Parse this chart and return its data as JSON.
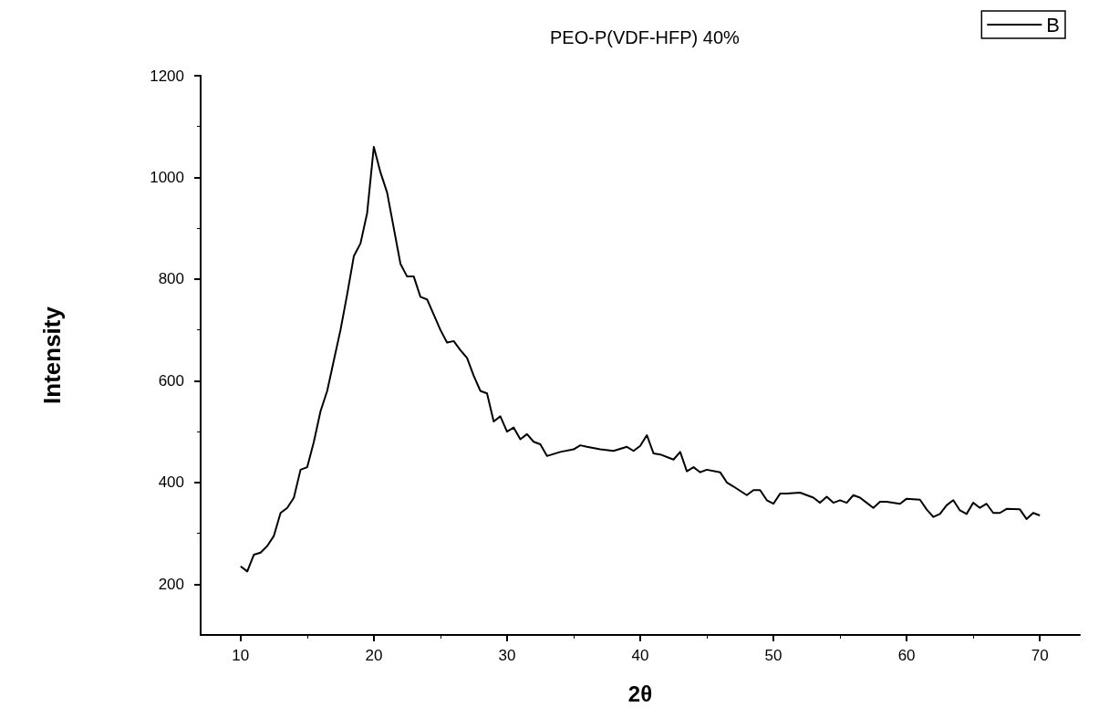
{
  "chart_data": {
    "type": "line",
    "title": "PEO-P(VDF-HFP) 40%",
    "xlabel": "2θ",
    "ylabel": "Intensity",
    "x": [
      10,
      10.5,
      11,
      11.5,
      12,
      12.5,
      13,
      13.5,
      14,
      14.5,
      15,
      15.5,
      16,
      16.5,
      17,
      17.5,
      18,
      18.5,
      19,
      19.5,
      20,
      20.5,
      21,
      21.5,
      22,
      22.5,
      23,
      23.5,
      24,
      24.5,
      25,
      25.5,
      26,
      26.5,
      27,
      27.5,
      28,
      28.5,
      29,
      29.5,
      30,
      30.5,
      31,
      31.5,
      32,
      32.5,
      33,
      34,
      35,
      35.5,
      36,
      37,
      38,
      39,
      39.5,
      40,
      40.5,
      41,
      41.5,
      42.5,
      43,
      43.5,
      44,
      44.5,
      45,
      46,
      46.5,
      47,
      48,
      48.5,
      49,
      49.5,
      50,
      50.5,
      51,
      52,
      53,
      53.5,
      54,
      54.5,
      55,
      55.5,
      56,
      56.5,
      57,
      57.5,
      58,
      58.5,
      59.5,
      60,
      61,
      61.5,
      62,
      62.5,
      63,
      63.5,
      64,
      64.5,
      65,
      65.5,
      66,
      66.5,
      67,
      67.5,
      68.5,
      69,
      69.5,
      70
    ],
    "series": [
      {
        "name": "B",
        "color": "#000000",
        "values": [
          235,
          225,
          258,
          262,
          275,
          295,
          340,
          350,
          370,
          425,
          430,
          480,
          540,
          580,
          640,
          700,
          770,
          845,
          870,
          930,
          1060,
          1010,
          970,
          900,
          830,
          805,
          805,
          765,
          760,
          730,
          700,
          675,
          678,
          660,
          645,
          610,
          580,
          575,
          520,
          530,
          500,
          508,
          485,
          495,
          480,
          475,
          452,
          460,
          465,
          473,
          470,
          465,
          462,
          470,
          462,
          472,
          493,
          457,
          455,
          445,
          460,
          422,
          430,
          420,
          425,
          420,
          400,
          392,
          375,
          385,
          385,
          365,
          358,
          378,
          378,
          380,
          370,
          360,
          372,
          360,
          365,
          360,
          375,
          370,
          360,
          350,
          362,
          362,
          358,
          368,
          366,
          347,
          332,
          338,
          355,
          365,
          345,
          338,
          360,
          350,
          358,
          340,
          340,
          348,
          347,
          328,
          340,
          335
        ]
      }
    ],
    "xlim": [
      7,
      73
    ],
    "xticks": [
      10,
      20,
      30,
      40,
      50,
      60,
      70
    ],
    "ylim": [
      100,
      1200
    ],
    "yticks": [
      200,
      400,
      600,
      800,
      1000,
      1200
    ],
    "grid": false,
    "legend": "top right",
    "marker": "none",
    "line_style": "solid"
  }
}
